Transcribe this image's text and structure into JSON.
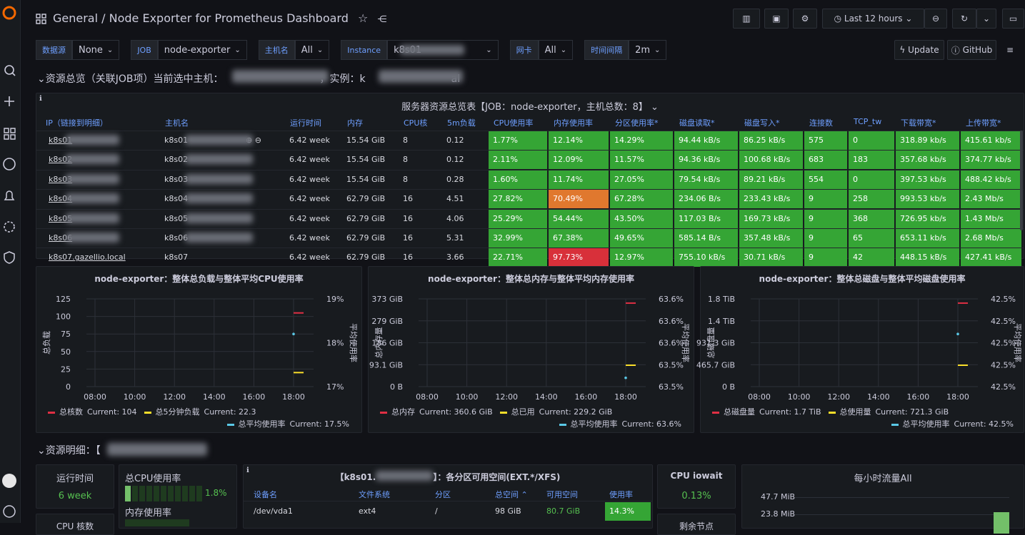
{
  "header": {
    "root": "General",
    "title": "/ Node Exporter for Prometheus Dashboard",
    "time_range": "Last 12 hours"
  },
  "variables": [
    {
      "label": "数据源",
      "value": "None"
    },
    {
      "label": "JOB",
      "value": "node-exporter"
    },
    {
      "label": "主机名",
      "value": "All"
    },
    {
      "label": "Instance",
      "value": "k8s01"
    },
    {
      "label": "网卡",
      "value": "All"
    },
    {
      "label": "时间间隔",
      "value": "2m"
    }
  ],
  "actions": [
    "Update",
    "GitHub"
  ],
  "row1": {
    "title": "资源总览（关联JOB项）当前选中主机：",
    "instance": "，实例：k",
    "instance_tail": "al"
  },
  "table": {
    "title": "服务器资源总览表【JOB：node-exporter，主机总数：8】",
    "columns": [
      "IP（链接到明细）",
      "主机名",
      "运行时间",
      "内存",
      "CPU核",
      "5m负载",
      "CPU使用率",
      "内存使用率",
      "分区使用率*",
      "磁盘读取*",
      "磁盘写入*",
      "连接数",
      "TCP_tw",
      "下载带宽*",
      "上传带宽*"
    ],
    "cell_color": "#35a535",
    "overrides": [
      {
        "row": 3,
        "col": 7,
        "color": "#e0782e"
      },
      {
        "row": 6,
        "col": 7,
        "color": "#d8303a"
      }
    ],
    "rows": [
      [
        "k8s01",
        "k8s01",
        "6.42 week",
        "15.54 GiB",
        "8",
        "0.12",
        "1.77%",
        "12.14%",
        "14.29%",
        "94.44 kB/s",
        "86.25 kB/s",
        "575",
        "0",
        "318.89 kb/s",
        "415.61 kb/s"
      ],
      [
        "k8s02",
        "k8s02",
        "6.42 week",
        "15.54 GiB",
        "8",
        "0.12",
        "2.11%",
        "12.09%",
        "11.57%",
        "94.36 kB/s",
        "100.68 kB/s",
        "683",
        "183",
        "357.68 kb/s",
        "374.77 kb/s"
      ],
      [
        "k8s03",
        "k8s03",
        "6.42 week",
        "15.54 GiB",
        "8",
        "0.28",
        "1.60%",
        "11.74%",
        "27.05%",
        "79.54 kB/s",
        "89.21 kB/s",
        "554",
        "0",
        "397.53 kb/s",
        "488.42 kb/s"
      ],
      [
        "k8s04",
        "k8s04",
        "6.42 week",
        "62.79 GiB",
        "16",
        "4.51",
        "27.82%",
        "70.49%",
        "67.28%",
        "234.06 B/s",
        "233.43 kB/s",
        "9",
        "258",
        "993.53 kb/s",
        "2.43 Mb/s"
      ],
      [
        "k8s05",
        "k8s05",
        "6.42 week",
        "62.79 GiB",
        "16",
        "4.06",
        "25.29%",
        "54.44%",
        "43.50%",
        "117.03 B/s",
        "169.73 kB/s",
        "9",
        "368",
        "726.95 kb/s",
        "1.43 Mb/s"
      ],
      [
        "k8s06",
        "k8s06",
        "6.42 week",
        "62.79 GiB",
        "16",
        "5.31",
        "32.99%",
        "67.38%",
        "49.65%",
        "585.14 B/s",
        "357.48 kB/s",
        "9",
        "65",
        "653.11 kb/s",
        "2.68 Mb/s"
      ],
      [
        "k8s07.gazellio.local",
        "k8s07",
        "6.42 week",
        "62.79 GiB",
        "16",
        "3.66",
        "22.71%",
        "97.73%",
        "12.97%",
        "755.10 kB/s",
        "30.71 kB/s",
        "9",
        "42",
        "448.15 kB/s",
        "427.41 kB/s"
      ]
    ]
  },
  "graphs": [
    {
      "title": "node-exporter：整体总负载与整体平均CPU使用率",
      "ylabel": "总负载",
      "y2label": "平均使用率",
      "yticks": [
        "125",
        "100",
        "75",
        "50",
        "25",
        "0"
      ],
      "y2ticks": [
        "19%",
        "18%",
        "17%"
      ],
      "xticks": [
        "08:00",
        "10:00",
        "12:00",
        "14:00",
        "16:00",
        "18:00"
      ],
      "legend": [
        {
          "name": "总核数",
          "color": "#e02f44",
          "current": "Current: 104"
        },
        {
          "name": "总5分钟负载",
          "color": "#fade2a",
          "current": "Current: 22.3"
        },
        {
          "name": "总平均使用率",
          "color": "#5ac8e6",
          "current": "Current: 17.5%"
        }
      ]
    },
    {
      "title": "node-exporter：整体总内存与整体平均内存使用率",
      "ylabel": "总内存量",
      "y2label": "平均使用率",
      "yticks": [
        "373 GiB",
        "279 GiB",
        "186 GiB",
        "93.1 GiB",
        "0 B"
      ],
      "y2ticks": [
        "63.6%",
        "63.6%",
        "63.6%",
        "63.5%",
        "63.5%"
      ],
      "xticks": [
        "08:00",
        "10:00",
        "12:00",
        "14:00",
        "16:00",
        "18:00"
      ],
      "legend": [
        {
          "name": "总内存",
          "color": "#e02f44",
          "current": "Current: 360.6 GiB"
        },
        {
          "name": "总已用",
          "color": "#fade2a",
          "current": "Current: 229.2 GiB"
        },
        {
          "name": "总平均使用率",
          "color": "#5ac8e6",
          "current": "Current: 63.6%"
        }
      ]
    },
    {
      "title": "node-exporter：整体总磁盘与整体平均磁盘使用率",
      "ylabel": "总磁盘量",
      "y2label": "平均使用率",
      "yticks": [
        "1.8 TiB",
        "1.4 TiB",
        "931.3 GiB",
        "465.7 GiB",
        "0 B"
      ],
      "y2ticks": [
        "42.5%",
        "42.5%",
        "42.5%",
        "42.5%",
        "42.5%"
      ],
      "xticks": [
        "08:00",
        "10:00",
        "12:00",
        "14:00",
        "16:00",
        "18:00"
      ],
      "legend": [
        {
          "name": "总磁盘量",
          "color": "#e02f44",
          "current": "Current: 1.7 TiB"
        },
        {
          "name": "总使用量",
          "color": "#fade2a",
          "current": "Current: 721.3 GiB"
        },
        {
          "name": "总平均使用率",
          "color": "#5ac8e6",
          "current": "Current: 42.5%"
        }
      ]
    }
  ],
  "row2": {
    "title": "资源明细：【"
  },
  "uptime": {
    "title": "运行时间",
    "value": "6 week"
  },
  "cpu_cores": {
    "title": "CPU 核数"
  },
  "gauges": [
    {
      "title": "总CPU使用率",
      "value": "1.8%"
    },
    {
      "title": "内存使用率"
    }
  ],
  "partitions": {
    "title_prefix": "【k8s01.",
    "title_suffix": "】：各分区可用空间(EXT.*/XFS)",
    "columns": [
      "设备名",
      "文件系统",
      "分区",
      "总空间 ⌃",
      "可用空间",
      "使用率"
    ],
    "rows": [
      [
        "/dev/vda1",
        "ext4",
        "/",
        "98 GiB",
        "80.7 GiB",
        "14.3%"
      ]
    ]
  },
  "iowait": {
    "title": "CPU iowait",
    "value": "0.13%"
  },
  "nodes_left": {
    "title": "剩余节点"
  },
  "traffic": {
    "title": "每小时流量All",
    "yticks": [
      "47.7 MiB",
      "23.8 MiB"
    ]
  }
}
